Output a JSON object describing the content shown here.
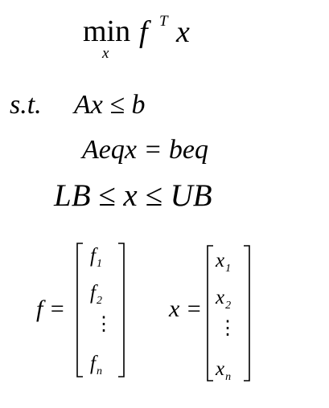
{
  "objective": {
    "operator": "min",
    "subscript": "x",
    "function": "f",
    "superscript": "T",
    "variable": "x"
  },
  "constraints": {
    "label": "s.t.",
    "inequality": "Ax ≤ b",
    "equality": "Aeqx = beq",
    "bounds": "LB ≤ x ≤ UB"
  },
  "vector_f": {
    "name": "f =",
    "symbol": "f",
    "subscripts": [
      "1",
      "2",
      "n"
    ],
    "dots": "⋮"
  },
  "vector_x": {
    "name": "x =",
    "symbol": "x",
    "subscripts": [
      "1",
      "2",
      "n"
    ],
    "dots": "⋮"
  }
}
